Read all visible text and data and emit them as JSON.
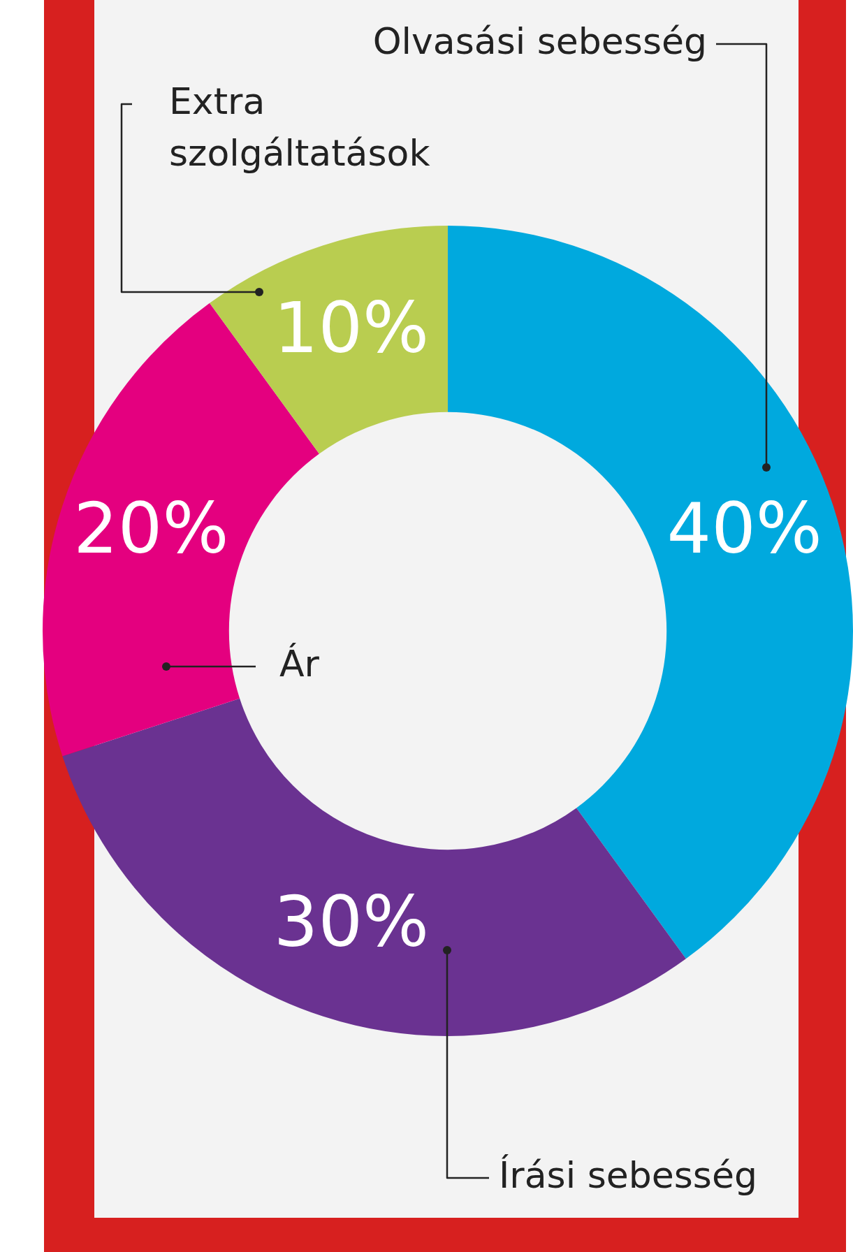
{
  "chart_data": {
    "type": "donut",
    "categories": [
      "Olvasási sebesség",
      "Írási sebesség",
      "Ár",
      "Extra szolgáltatások"
    ],
    "values": [
      40,
      30,
      20,
      10
    ],
    "colors": [
      "#00a9de",
      "#6a3291",
      "#e4007f",
      "#b9cd50"
    ],
    "value_labels": [
      "40%",
      "30%",
      "20%",
      "10%"
    ],
    "legend": false
  }
}
